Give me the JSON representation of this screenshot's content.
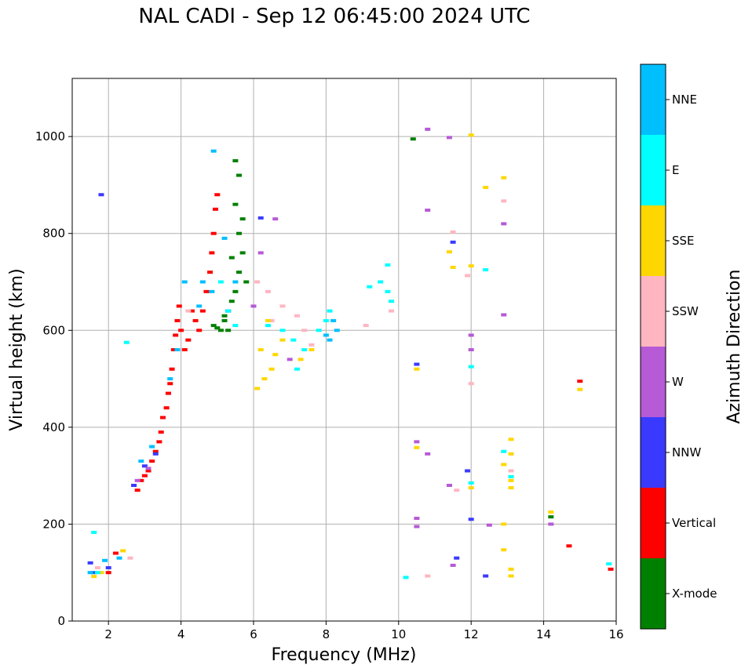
{
  "chart_data": {
    "type": "scatter",
    "title": "NAL CADI - Sep 12 06:45:00 2024 UTC",
    "xlabel": "Frequency (MHz)",
    "ylabel": "Virtual height (km)",
    "xlim": [
      1,
      16
    ],
    "ylim": [
      0,
      1120
    ],
    "xticks": [
      2,
      4,
      6,
      8,
      10,
      12,
      14,
      16
    ],
    "yticks": [
      0,
      200,
      400,
      600,
      800,
      1000
    ],
    "grid": true,
    "colorbar": {
      "label": "Azimuth Direction",
      "categories": [
        {
          "name": "X-mode",
          "color": "#008000"
        },
        {
          "name": "Vertical",
          "color": "#ff0000"
        },
        {
          "name": "NNW",
          "color": "#3a3aff"
        },
        {
          "name": "W",
          "color": "#b65ad6"
        },
        {
          "name": "SSW",
          "color": "#ffb6c1"
        },
        {
          "name": "SSE",
          "color": "#ffd700"
        },
        {
          "name": "E",
          "color": "#00ffff"
        },
        {
          "name": "NNE",
          "color": "#00bfff"
        }
      ]
    },
    "series": [
      {
        "name": "X-mode",
        "points": [
          [
            5.0,
            605
          ],
          [
            5.1,
            600
          ],
          [
            5.2,
            620
          ],
          [
            5.3,
            640
          ],
          [
            5.4,
            660
          ],
          [
            5.5,
            680
          ],
          [
            5.6,
            720
          ],
          [
            5.7,
            760
          ],
          [
            5.6,
            800
          ],
          [
            5.5,
            860
          ],
          [
            5.6,
            920
          ],
          [
            5.8,
            700
          ],
          [
            5.3,
            600
          ],
          [
            4.9,
            610
          ],
          [
            5.5,
            950
          ],
          [
            5.4,
            750
          ],
          [
            5.2,
            630
          ],
          [
            5.7,
            830
          ],
          [
            10.4,
            995
          ],
          [
            14.2,
            215
          ]
        ]
      },
      {
        "name": "Vertical",
        "points": [
          [
            2.8,
            270
          ],
          [
            2.9,
            290
          ],
          [
            3.0,
            300
          ],
          [
            3.1,
            310
          ],
          [
            3.2,
            330
          ],
          [
            3.3,
            350
          ],
          [
            3.4,
            370
          ],
          [
            3.45,
            390
          ],
          [
            3.5,
            420
          ],
          [
            3.6,
            440
          ],
          [
            3.65,
            470
          ],
          [
            3.7,
            490
          ],
          [
            3.75,
            520
          ],
          [
            3.8,
            560
          ],
          [
            3.85,
            590
          ],
          [
            3.9,
            620
          ],
          [
            3.95,
            650
          ],
          [
            4.1,
            560
          ],
          [
            4.2,
            580
          ],
          [
            4.4,
            620
          ],
          [
            4.5,
            600
          ],
          [
            4.6,
            640
          ],
          [
            4.7,
            680
          ],
          [
            4.8,
            720
          ],
          [
            4.85,
            760
          ],
          [
            4.9,
            800
          ],
          [
            4.95,
            850
          ],
          [
            5.0,
            880
          ],
          [
            4.3,
            640
          ],
          [
            4.0,
            600
          ],
          [
            2.2,
            140
          ],
          [
            2.0,
            100
          ],
          [
            15.0,
            495
          ],
          [
            14.7,
            155
          ],
          [
            15.85,
            107
          ]
        ]
      },
      {
        "name": "NNW",
        "points": [
          [
            1.5,
            120
          ],
          [
            1.6,
            100
          ],
          [
            2.0,
            110
          ],
          [
            2.7,
            280
          ],
          [
            3.0,
            320
          ],
          [
            3.3,
            345
          ],
          [
            1.8,
            880
          ],
          [
            6.2,
            832
          ],
          [
            10.5,
            530
          ],
          [
            11.5,
            782
          ],
          [
            11.9,
            310
          ],
          [
            12.0,
            210
          ],
          [
            12.4,
            93
          ],
          [
            11.6,
            130
          ],
          [
            5.3,
            640
          ]
        ]
      },
      {
        "name": "W",
        "points": [
          [
            2.8,
            290
          ],
          [
            3.1,
            315
          ],
          [
            6.2,
            760
          ],
          [
            6.6,
            830
          ],
          [
            7.0,
            540
          ],
          [
            10.8,
            1015
          ],
          [
            10.8,
            848
          ],
          [
            11.4,
            998
          ],
          [
            12.9,
            820
          ],
          [
            12.9,
            632
          ],
          [
            12.0,
            590
          ],
          [
            12.0,
            560
          ],
          [
            10.5,
            370
          ],
          [
            10.8,
            345
          ],
          [
            11.4,
            280
          ],
          [
            10.5,
            212
          ],
          [
            10.5,
            195
          ],
          [
            11.5,
            115
          ],
          [
            12.5,
            198
          ],
          [
            14.2,
            200
          ],
          [
            6.0,
            650
          ]
        ]
      },
      {
        "name": "SSW",
        "points": [
          [
            1.7,
            110
          ],
          [
            2.6,
            130
          ],
          [
            4.2,
            640
          ],
          [
            6.1,
            700
          ],
          [
            6.4,
            680
          ],
          [
            6.8,
            650
          ],
          [
            7.2,
            630
          ],
          [
            7.4,
            600
          ],
          [
            7.6,
            570
          ],
          [
            9.1,
            610
          ],
          [
            9.8,
            640
          ],
          [
            10.8,
            93
          ],
          [
            11.6,
            270
          ],
          [
            12.0,
            490
          ],
          [
            12.9,
            867
          ],
          [
            11.5,
            803
          ],
          [
            11.9,
            713
          ],
          [
            13.1,
            310
          ],
          [
            6.5,
            620
          ]
        ]
      },
      {
        "name": "SSE",
        "points": [
          [
            1.6,
            92
          ],
          [
            1.8,
            100
          ],
          [
            2.4,
            145
          ],
          [
            6.1,
            480
          ],
          [
            6.3,
            500
          ],
          [
            6.5,
            520
          ],
          [
            6.6,
            550
          ],
          [
            6.8,
            580
          ],
          [
            6.4,
            620
          ],
          [
            7.3,
            540
          ],
          [
            7.6,
            560
          ],
          [
            6.2,
            560
          ],
          [
            11.4,
            762
          ],
          [
            11.5,
            730
          ],
          [
            12.0,
            733
          ],
          [
            12.0,
            1003
          ],
          [
            12.4,
            895
          ],
          [
            12.9,
            915
          ],
          [
            10.5,
            520
          ],
          [
            10.5,
            358
          ],
          [
            12.0,
            275
          ],
          [
            12.9,
            323
          ],
          [
            13.1,
            375
          ],
          [
            13.1,
            345
          ],
          [
            13.1,
            290
          ],
          [
            13.1,
            275
          ],
          [
            12.9,
            200
          ],
          [
            12.9,
            147
          ],
          [
            13.1,
            107
          ],
          [
            13.1,
            93
          ],
          [
            14.2,
            225
          ],
          [
            15.0,
            478
          ]
        ]
      },
      {
        "name": "E",
        "points": [
          [
            1.6,
            183
          ],
          [
            1.7,
            100
          ],
          [
            2.5,
            575
          ],
          [
            5.1,
            700
          ],
          [
            5.3,
            640
          ],
          [
            5.5,
            610
          ],
          [
            6.4,
            610
          ],
          [
            6.8,
            600
          ],
          [
            7.1,
            580
          ],
          [
            7.4,
            560
          ],
          [
            7.8,
            600
          ],
          [
            8.0,
            620
          ],
          [
            8.1,
            640
          ],
          [
            9.2,
            690
          ],
          [
            9.5,
            700
          ],
          [
            9.7,
            680
          ],
          [
            9.8,
            660
          ],
          [
            9.7,
            735
          ],
          [
            10.2,
            90
          ],
          [
            12.0,
            525
          ],
          [
            12.0,
            285
          ],
          [
            12.9,
            350
          ],
          [
            13.1,
            298
          ],
          [
            12.4,
            725
          ],
          [
            15.8,
            118
          ],
          [
            7.2,
            520
          ]
        ]
      },
      {
        "name": "NNE",
        "points": [
          [
            1.5,
            100
          ],
          [
            1.9,
            125
          ],
          [
            2.3,
            130
          ],
          [
            2.9,
            330
          ],
          [
            3.2,
            360
          ],
          [
            3.7,
            500
          ],
          [
            3.9,
            560
          ],
          [
            4.1,
            700
          ],
          [
            4.5,
            650
          ],
          [
            4.6,
            700
          ],
          [
            4.85,
            680
          ],
          [
            4.9,
            970
          ],
          [
            5.2,
            790
          ],
          [
            5.5,
            700
          ],
          [
            8.2,
            620
          ],
          [
            8.3,
            600
          ],
          [
            8.1,
            580
          ],
          [
            8.0,
            590
          ]
        ]
      }
    ]
  }
}
